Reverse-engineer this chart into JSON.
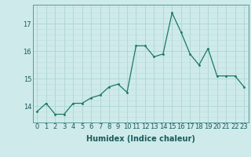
{
  "x": [
    0,
    1,
    2,
    3,
    4,
    5,
    6,
    7,
    8,
    9,
    10,
    11,
    12,
    13,
    14,
    15,
    16,
    17,
    18,
    19,
    20,
    21,
    22,
    23
  ],
  "y": [
    13.8,
    14.1,
    13.7,
    13.7,
    14.1,
    14.1,
    14.3,
    14.4,
    14.7,
    14.8,
    14.5,
    16.2,
    16.2,
    15.8,
    15.9,
    17.4,
    16.7,
    15.9,
    15.5,
    16.1,
    15.1,
    15.1,
    15.1,
    14.7
  ],
  "line_color": "#1a7a5e",
  "marker_color": "#1a7a5e",
  "bg_color": "#ceeaea",
  "grid_color_major": "#add4d4",
  "grid_color_minor": "#bedddd",
  "xlabel": "Humidex (Indice chaleur)",
  "ylim": [
    13.4,
    17.7
  ],
  "yticks": [
    14,
    15,
    16,
    17
  ],
  "xticks": [
    0,
    1,
    2,
    3,
    4,
    5,
    6,
    7,
    8,
    9,
    10,
    11,
    12,
    13,
    14,
    15,
    16,
    17,
    18,
    19,
    20,
    21,
    22,
    23
  ],
  "label_fontsize": 7,
  "tick_fontsize": 6
}
